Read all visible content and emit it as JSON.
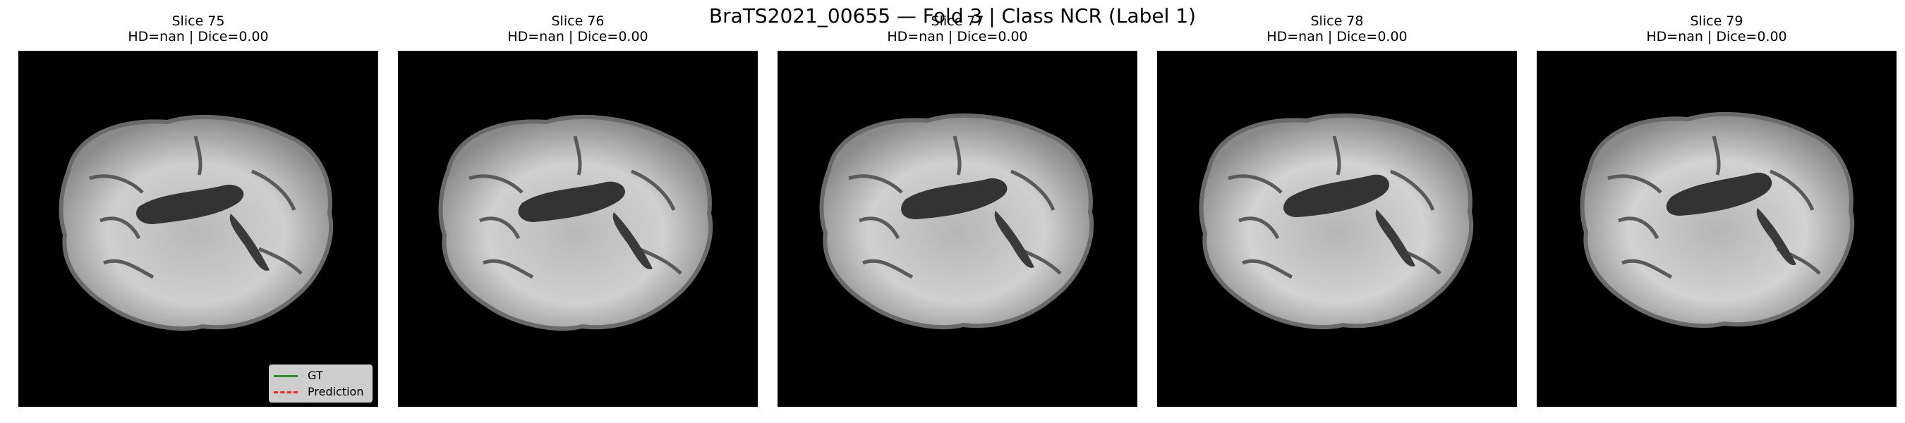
{
  "figure": {
    "title": "BraTS2021_00655 — Fold 3 | Class NCR (Label 1)"
  },
  "panels": [
    {
      "slice": "Slice 75",
      "metrics": "HD=nan | Dice=0.00"
    },
    {
      "slice": "Slice 76",
      "metrics": "HD=nan | Dice=0.00"
    },
    {
      "slice": "Slice 77",
      "metrics": "HD=nan | Dice=0.00"
    },
    {
      "slice": "Slice 78",
      "metrics": "HD=nan | Dice=0.00"
    },
    {
      "slice": "Slice 79",
      "metrics": "HD=nan | Dice=0.00"
    }
  ],
  "legend": {
    "items": [
      {
        "label": "GT",
        "color": "#2e8b2e",
        "style": "solid"
      },
      {
        "label": "Prediction",
        "color": "#ff2020",
        "style": "dashed"
      }
    ]
  },
  "colors": {
    "background": "#000000",
    "brain_light": "#dcdcdc",
    "brain_mid": "#9a9a9a",
    "ventricle": "#333333"
  }
}
